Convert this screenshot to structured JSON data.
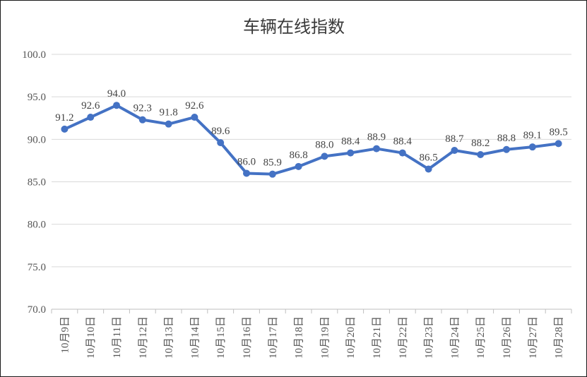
{
  "chart_data": {
    "type": "line",
    "title": "车辆在线指数",
    "xlabel": "",
    "ylabel": "",
    "ylim": [
      70.0,
      100.0
    ],
    "yticks": [
      "70.0",
      "75.0",
      "80.0",
      "85.0",
      "90.0",
      "95.0",
      "100.0"
    ],
    "grid": true,
    "legend": "none",
    "categories": [
      "10月9日",
      "10月10日",
      "10月11日",
      "10月12日",
      "10月13日",
      "10月14日",
      "10月15日",
      "10月16日",
      "10月17日",
      "10月18日",
      "10月19日",
      "10月20日",
      "10月21日",
      "10月22日",
      "10月23日",
      "10月24日",
      "10月25日",
      "10月26日",
      "10月27日",
      "10月28日"
    ],
    "series": [
      {
        "values": [
          91.2,
          92.6,
          94.0,
          92.3,
          91.8,
          92.6,
          89.6,
          86.0,
          85.9,
          86.8,
          88.0,
          88.4,
          88.9,
          88.4,
          86.5,
          88.7,
          88.2,
          88.8,
          89.1,
          89.5
        ],
        "labels": [
          "91.2",
          "92.6",
          "94.0",
          "92.3",
          "91.8",
          "92.6",
          "89.6",
          "86.0",
          "85.9",
          "86.8",
          "88.0",
          "88.4",
          "88.9",
          "88.4",
          "86.5",
          "88.7",
          "88.2",
          "88.8",
          "89.1",
          "89.5"
        ],
        "color": "#4472C4"
      }
    ],
    "gridColor": "#d9d9d9",
    "axisColor": "#bfbfbf"
  }
}
